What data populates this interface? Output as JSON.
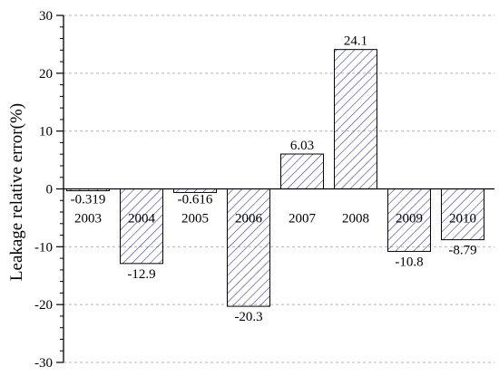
{
  "chart_data": {
    "type": "bar",
    "title": "",
    "xlabel": "",
    "ylabel": "Leakage relative error(%)",
    "ylim": [
      -30,
      30
    ],
    "yticks": [
      30,
      20,
      10,
      0,
      -10,
      -20,
      -30
    ],
    "grid": "horizontal dashed",
    "bar_fill": "diagonal hatch",
    "colors": {
      "hatch": "#2b2b8c",
      "axis": "#000000",
      "grid": "#b5b5b5"
    },
    "categories": [
      "2003",
      "2004",
      "2005",
      "2006",
      "2007",
      "2008",
      "2009",
      "2010"
    ],
    "values": [
      -0.319,
      -12.9,
      -0.616,
      -20.3,
      6.03,
      24.1,
      -10.8,
      -8.79
    ],
    "data_labels": [
      "-0.319",
      "-12.9",
      "-0.616",
      "-20.3",
      "6.03",
      "24.1",
      "-10.8",
      "-8.79"
    ]
  }
}
